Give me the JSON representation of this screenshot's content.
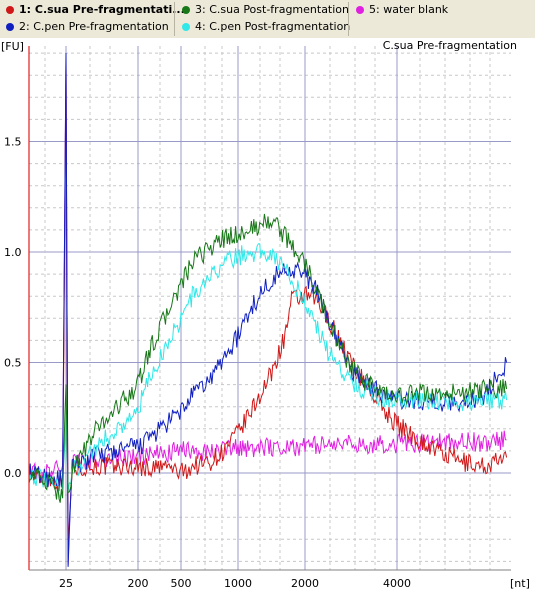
{
  "legend": [
    {
      "label": "1: C.sua Pre-fragmentati...",
      "color": "#d01818",
      "selected": true
    },
    {
      "label": "2: C.pen Pre-fragmentation",
      "color": "#1020c0",
      "selected": false
    },
    {
      "label": "3: C.sua Post-fragmentation",
      "color": "#187818",
      "selected": false
    },
    {
      "label": "4: C.pen Post-fragmentation",
      "color": "#30e8e8",
      "selected": false
    },
    {
      "label": "5: water blank",
      "color": "#e020e0",
      "selected": false
    }
  ],
  "chart_data": {
    "type": "line",
    "title": "C.sua Pre-fragmentation",
    "ylabel": "[FU]",
    "xlabel": "[nt]",
    "ylim": [
      -0.45,
      1.95
    ],
    "yticks": [
      0.0,
      0.5,
      1.0,
      1.5
    ],
    "ytick_labels": [
      "0.0",
      "0.5",
      "1.0",
      "1.5"
    ],
    "xticks": [
      25,
      200,
      500,
      1000,
      2000,
      4000
    ],
    "xtick_labels": [
      "25",
      "200",
      "500",
      "1000",
      "2000",
      "4000"
    ],
    "grid": true,
    "series": [
      {
        "name": "C.sua Pre-fragmentation",
        "color": "#d01818",
        "x": [
          -30,
          0,
          20,
          25,
          30,
          40,
          75,
          100,
          200,
          300,
          400,
          500,
          600,
          750,
          875,
          1000,
          1200,
          1500,
          1700,
          1800,
          2000,
          2250,
          2500,
          2750,
          3000,
          3250,
          3500,
          3750,
          4000,
          4250,
          4500,
          4750,
          5000,
          5250
        ],
        "y": [
          0.0,
          -0.03,
          -0.05,
          1.85,
          -0.35,
          0.02,
          0.03,
          0.03,
          0.03,
          0.02,
          0.03,
          0.0,
          0.03,
          0.05,
          0.1,
          0.18,
          0.28,
          0.45,
          0.62,
          0.78,
          0.8,
          0.78,
          0.7,
          0.6,
          0.5,
          0.42,
          0.35,
          0.28,
          0.22,
          0.15,
          0.09,
          0.05,
          0.03,
          0.07
        ]
      },
      {
        "name": "C.pen Pre-fragmentation",
        "color": "#1020c0",
        "x": [
          -30,
          0,
          20,
          25,
          30,
          40,
          75,
          100,
          150,
          200,
          250,
          300,
          400,
          500,
          600,
          750,
          875,
          1000,
          1200,
          1500,
          1700,
          1800,
          2000,
          2250,
          2500,
          2750,
          3000,
          3250,
          3500,
          3750,
          4000,
          4250,
          4500,
          4750,
          5000,
          5250
        ],
        "y": [
          0.0,
          -0.02,
          -0.03,
          1.9,
          -0.45,
          0.03,
          0.06,
          0.08,
          0.1,
          0.12,
          0.14,
          0.17,
          0.22,
          0.28,
          0.35,
          0.42,
          0.52,
          0.62,
          0.75,
          0.88,
          0.92,
          0.93,
          0.9,
          0.82,
          0.7,
          0.58,
          0.47,
          0.42,
          0.38,
          0.35,
          0.33,
          0.33,
          0.32,
          0.32,
          0.35,
          0.5
        ]
      },
      {
        "name": "C.sua Post-fragmentation",
        "color": "#187818",
        "x": [
          -30,
          0,
          20,
          25,
          30,
          40,
          75,
          100,
          150,
          200,
          250,
          300,
          400,
          500,
          600,
          750,
          875,
          1000,
          1200,
          1500,
          1750,
          2000,
          2250,
          2500,
          2750,
          3000,
          3250,
          3500,
          3750,
          4000,
          4250,
          4500,
          4750,
          5000,
          5250
        ],
        "y": [
          0.0,
          -0.05,
          -0.1,
          0.4,
          -0.1,
          0.02,
          0.12,
          0.2,
          0.3,
          0.4,
          0.5,
          0.58,
          0.72,
          0.85,
          0.95,
          1.02,
          1.06,
          1.08,
          1.1,
          1.15,
          1.05,
          0.95,
          0.82,
          0.7,
          0.58,
          0.48,
          0.42,
          0.38,
          0.35,
          0.35,
          0.36,
          0.36,
          0.36,
          0.38,
          0.38
        ]
      },
      {
        "name": "C.pen Post-fragmentation",
        "color": "#30e8e8",
        "x": [
          -30,
          0,
          20,
          25,
          30,
          40,
          75,
          100,
          150,
          200,
          250,
          300,
          400,
          500,
          600,
          750,
          875,
          1000,
          1200,
          1500,
          1750,
          2000,
          2250,
          2500,
          2750,
          3000,
          3250,
          3500,
          3750,
          4000,
          4250,
          4500,
          4750,
          5000,
          5250
        ],
        "y": [
          0.0,
          -0.05,
          -0.08,
          0.3,
          -0.08,
          0.0,
          0.08,
          0.12,
          0.2,
          0.28,
          0.38,
          0.45,
          0.58,
          0.7,
          0.8,
          0.88,
          0.95,
          0.98,
          1.0,
          1.0,
          0.9,
          0.78,
          0.66,
          0.55,
          0.48,
          0.42,
          0.38,
          0.36,
          0.34,
          0.33,
          0.33,
          0.33,
          0.32,
          0.32,
          0.33
        ]
      },
      {
        "name": "water blank",
        "color": "#e020e0",
        "x": [
          -30,
          0,
          20,
          25,
          30,
          40,
          75,
          100,
          200,
          300,
          400,
          500,
          750,
          1000,
          1500,
          2000,
          2500,
          3000,
          3500,
          4000,
          4500,
          5000,
          5250
        ],
        "y": [
          0.0,
          0.0,
          0.05,
          1.9,
          -0.4,
          0.05,
          0.05,
          0.06,
          0.07,
          0.08,
          0.09,
          0.1,
          0.1,
          0.11,
          0.12,
          0.12,
          0.13,
          0.13,
          0.13,
          0.13,
          0.14,
          0.14,
          0.15
        ]
      }
    ]
  }
}
